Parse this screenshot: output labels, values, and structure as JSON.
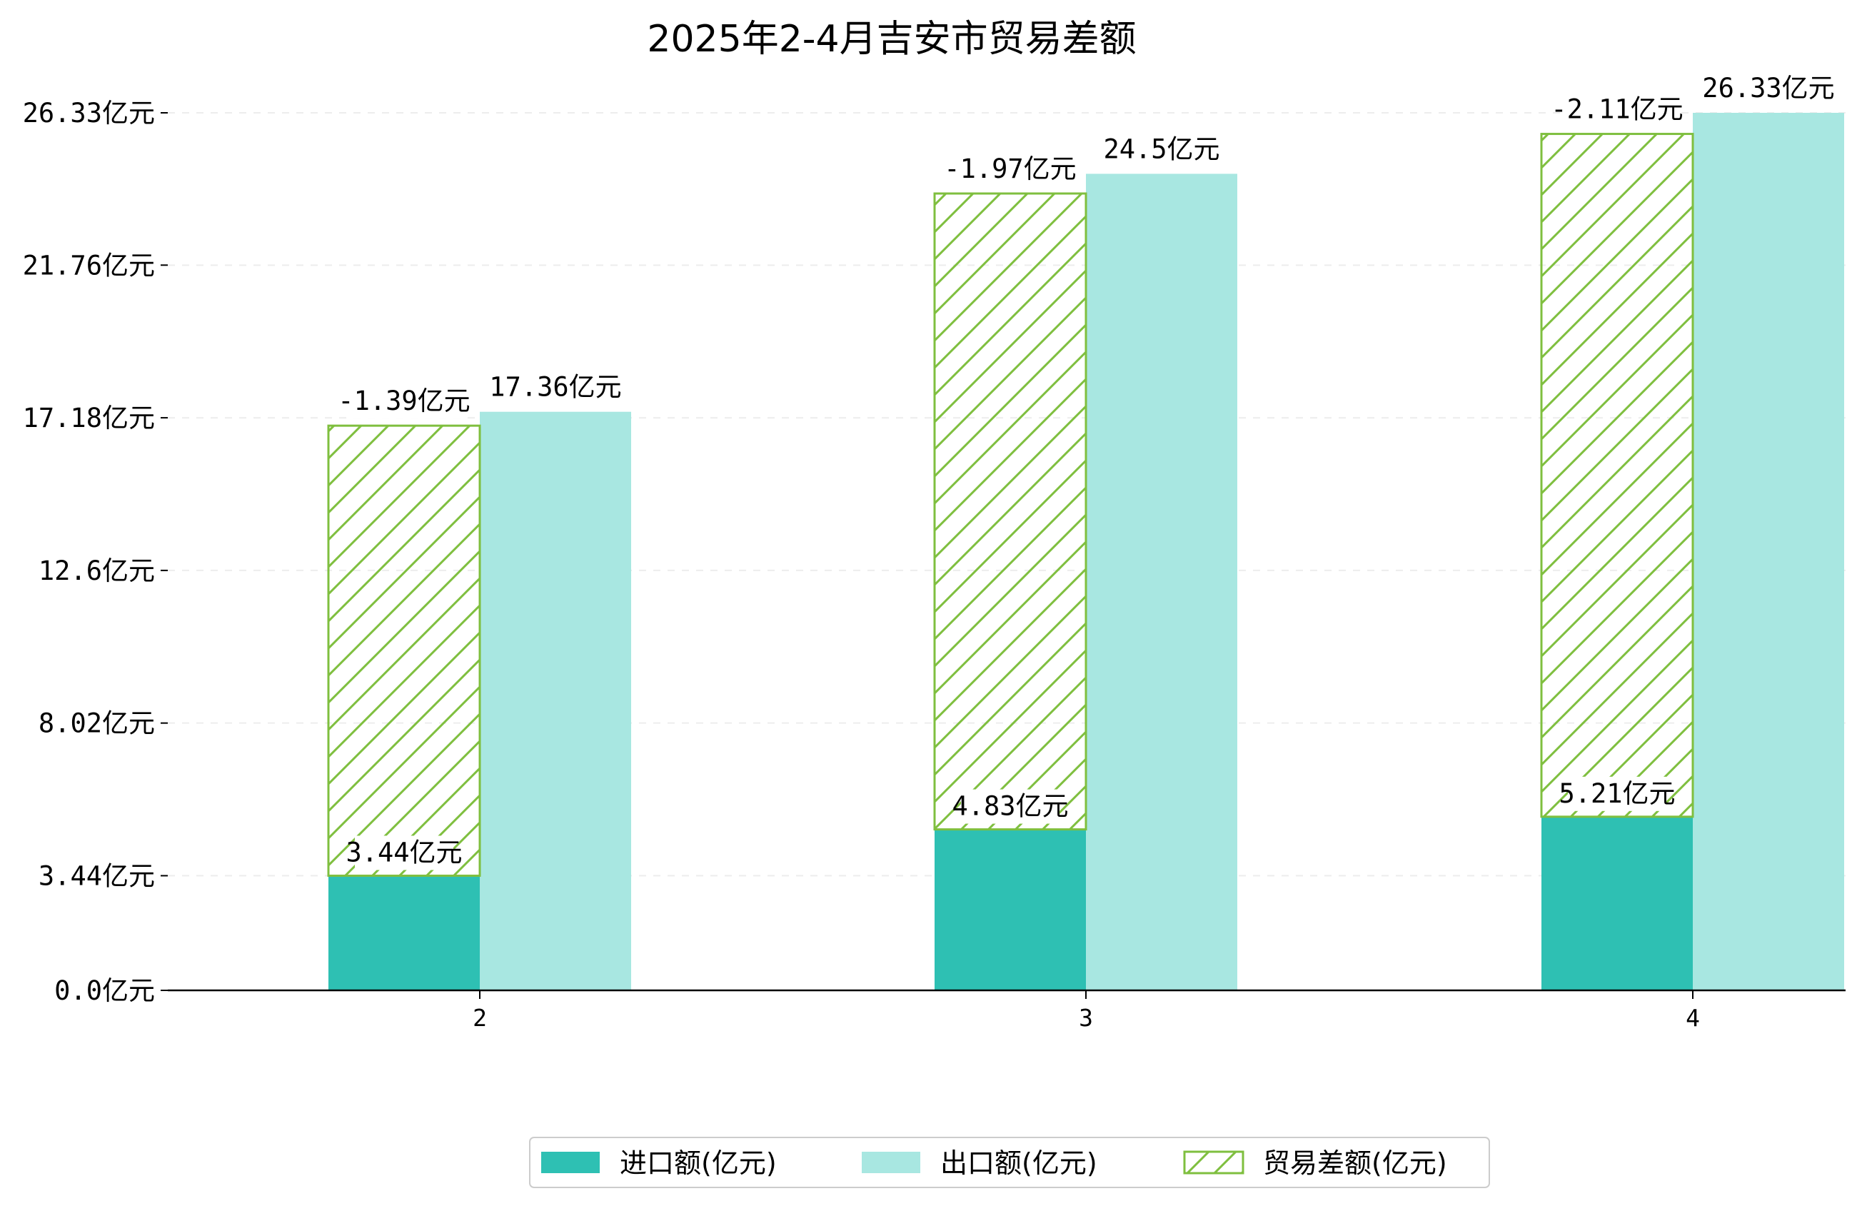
{
  "chart_data": {
    "type": "bar",
    "title": "2025年2-4月吉安市贸易差额",
    "categories": [
      "2",
      "3",
      "4"
    ],
    "series": [
      {
        "name": "进口额(亿元)",
        "values": [
          3.44,
          4.83,
          5.21
        ],
        "color": "#2ec0b3",
        "labels": [
          "3.44亿元",
          "4.83亿元",
          "5.21亿元"
        ]
      },
      {
        "name": "出口额(亿元)",
        "values": [
          17.36,
          24.5,
          26.33
        ],
        "color": "#a8e7e1",
        "labels": [
          "17.36亿元",
          "24.5亿元",
          "26.33亿元"
        ]
      },
      {
        "name": "贸易差额(亿元)",
        "values": [
          -1.39,
          -1.97,
          -2.11
        ],
        "color": "#7fbf3f",
        "labels": [
          "-1.39亿元",
          "-1.97亿元",
          "-2.11亿元"
        ]
      }
    ],
    "yticks": [
      0.0,
      3.44,
      8.02,
      12.6,
      17.18,
      21.76,
      26.33
    ],
    "ytick_labels": [
      "0.0亿元",
      "3.44亿元",
      "8.02亿元",
      "12.6亿元",
      "17.18亿元",
      "21.76亿元",
      "26.33亿元"
    ],
    "ylim": [
      0,
      26.33
    ],
    "grid": true,
    "legend_position": "bottom-center"
  }
}
